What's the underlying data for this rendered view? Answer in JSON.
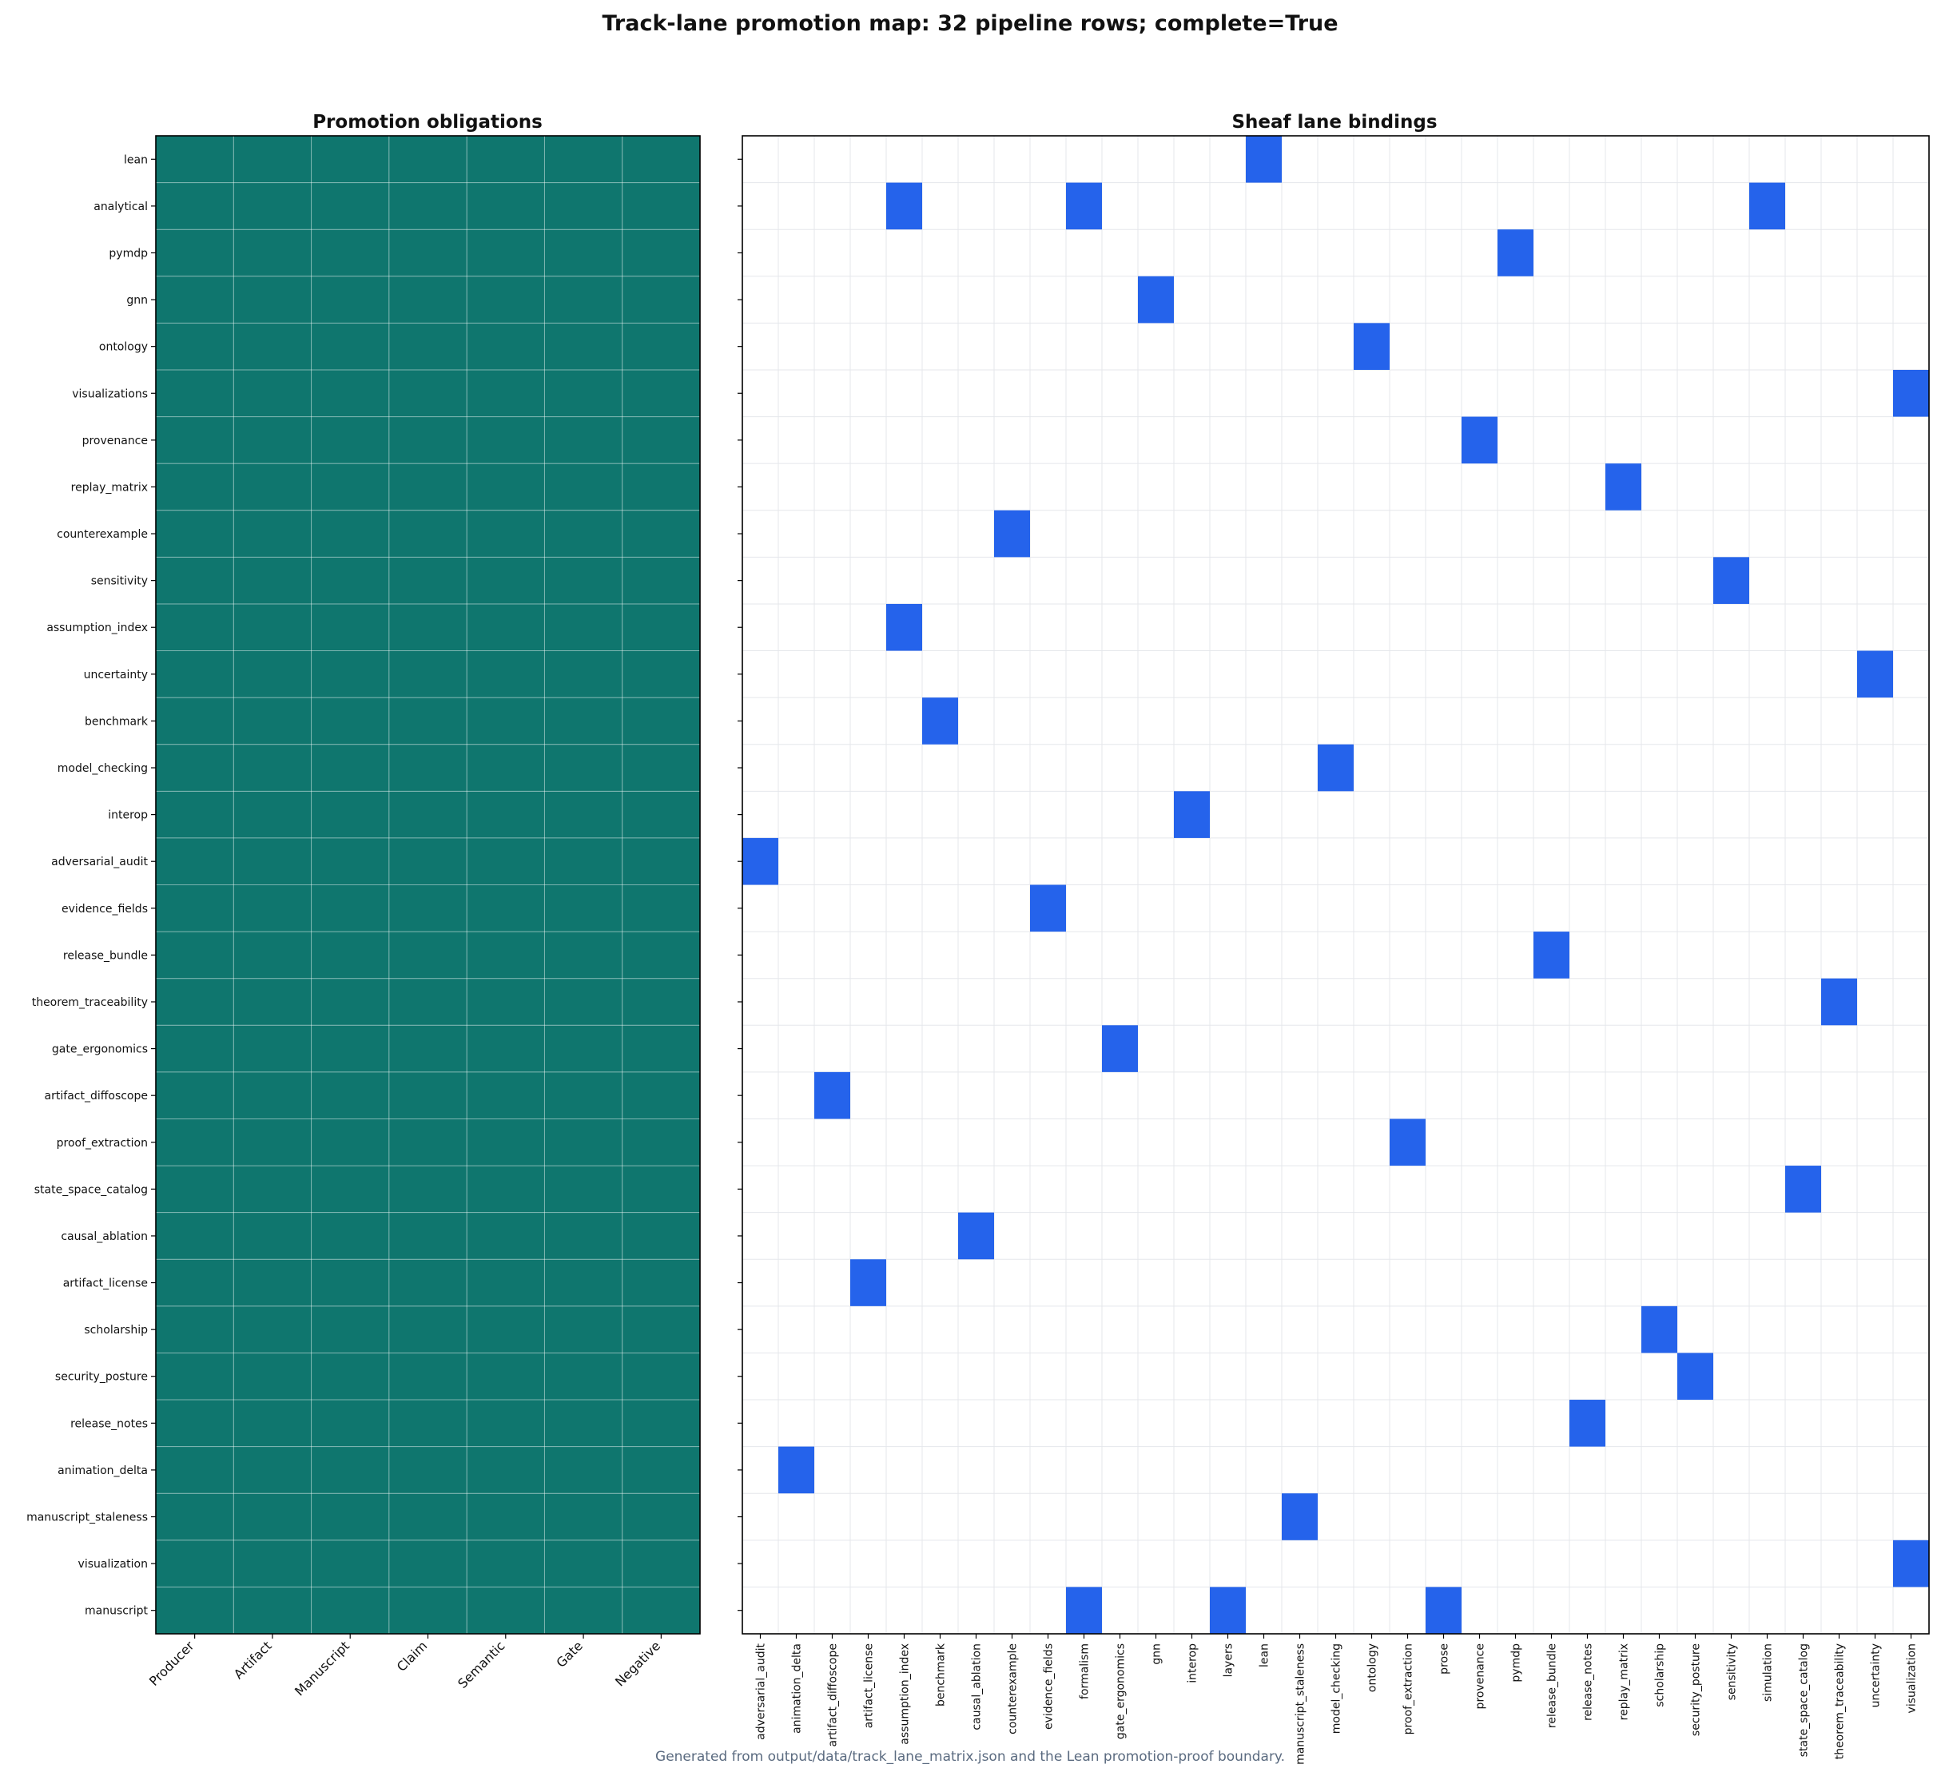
{
  "title": "Track-lane promotion map: 32 pipeline rows; complete=True",
  "footer": "Generated from output/data/track_lane_matrix.json and the Lean promotion-proof boundary.",
  "colors": {
    "obligation_fill": "#0f766e",
    "binding_fill": "#2563eb",
    "grid": "#e5e7eb",
    "footer": "#5b6b80"
  },
  "chart_data": [
    {
      "type": "heatmap",
      "title": "Promotion obligations",
      "rows": [
        "lean",
        "analytical",
        "pymdp",
        "gnn",
        "ontology",
        "visualizations",
        "provenance",
        "replay_matrix",
        "counterexample",
        "sensitivity",
        "assumption_index",
        "uncertainty",
        "benchmark",
        "model_checking",
        "interop",
        "adversarial_audit",
        "evidence_fields",
        "release_bundle",
        "theorem_traceability",
        "gate_ergonomics",
        "artifact_diffoscope",
        "proof_extraction",
        "state_space_catalog",
        "causal_ablation",
        "artifact_license",
        "scholarship",
        "security_posture",
        "release_notes",
        "animation_delta",
        "manuscript_staleness",
        "visualization",
        "manuscript"
      ],
      "columns": [
        "Producer",
        "Artifact",
        "Manuscript",
        "Claim",
        "Semantic",
        "Gate",
        "Negative"
      ],
      "value_all_cells": 1
    },
    {
      "type": "heatmap",
      "title": "Sheaf lane bindings",
      "columns": [
        "adversarial_audit",
        "animation_delta",
        "artifact_diffoscope",
        "artifact_license",
        "assumption_index",
        "benchmark",
        "causal_ablation",
        "counterexample",
        "evidence_fields",
        "formalism",
        "gate_ergonomics",
        "gnn",
        "interop",
        "layers",
        "lean",
        "manuscript_staleness",
        "model_checking",
        "ontology",
        "proof_extraction",
        "prose",
        "provenance",
        "pymdp",
        "release_bundle",
        "release_notes",
        "replay_matrix",
        "scholarship",
        "security_posture",
        "sensitivity",
        "simulation",
        "state_space_catalog",
        "theorem_traceability",
        "uncertainty",
        "visualization"
      ],
      "bindings": {
        "lean": [
          "lean"
        ],
        "analytical": [
          "assumption_index",
          "formalism",
          "simulation"
        ],
        "pymdp": [
          "pymdp"
        ],
        "gnn": [
          "gnn"
        ],
        "ontology": [
          "ontology"
        ],
        "visualizations": [
          "visualization"
        ],
        "provenance": [
          "provenance"
        ],
        "replay_matrix": [
          "replay_matrix"
        ],
        "counterexample": [
          "counterexample"
        ],
        "sensitivity": [
          "sensitivity"
        ],
        "assumption_index": [
          "assumption_index"
        ],
        "uncertainty": [
          "uncertainty"
        ],
        "benchmark": [
          "benchmark"
        ],
        "model_checking": [
          "model_checking"
        ],
        "interop": [
          "interop"
        ],
        "adversarial_audit": [
          "adversarial_audit"
        ],
        "evidence_fields": [
          "evidence_fields"
        ],
        "release_bundle": [
          "release_bundle"
        ],
        "theorem_traceability": [
          "theorem_traceability"
        ],
        "gate_ergonomics": [
          "gate_ergonomics"
        ],
        "artifact_diffoscope": [
          "artifact_diffoscope"
        ],
        "proof_extraction": [
          "proof_extraction"
        ],
        "state_space_catalog": [
          "state_space_catalog"
        ],
        "causal_ablation": [
          "causal_ablation"
        ],
        "artifact_license": [
          "artifact_license"
        ],
        "scholarship": [
          "scholarship"
        ],
        "security_posture": [
          "security_posture"
        ],
        "release_notes": [
          "release_notes"
        ],
        "animation_delta": [
          "animation_delta"
        ],
        "manuscript_staleness": [
          "manuscript_staleness"
        ],
        "visualization": [
          "visualization"
        ],
        "manuscript": [
          "formalism",
          "layers",
          "prose"
        ]
      }
    }
  ]
}
